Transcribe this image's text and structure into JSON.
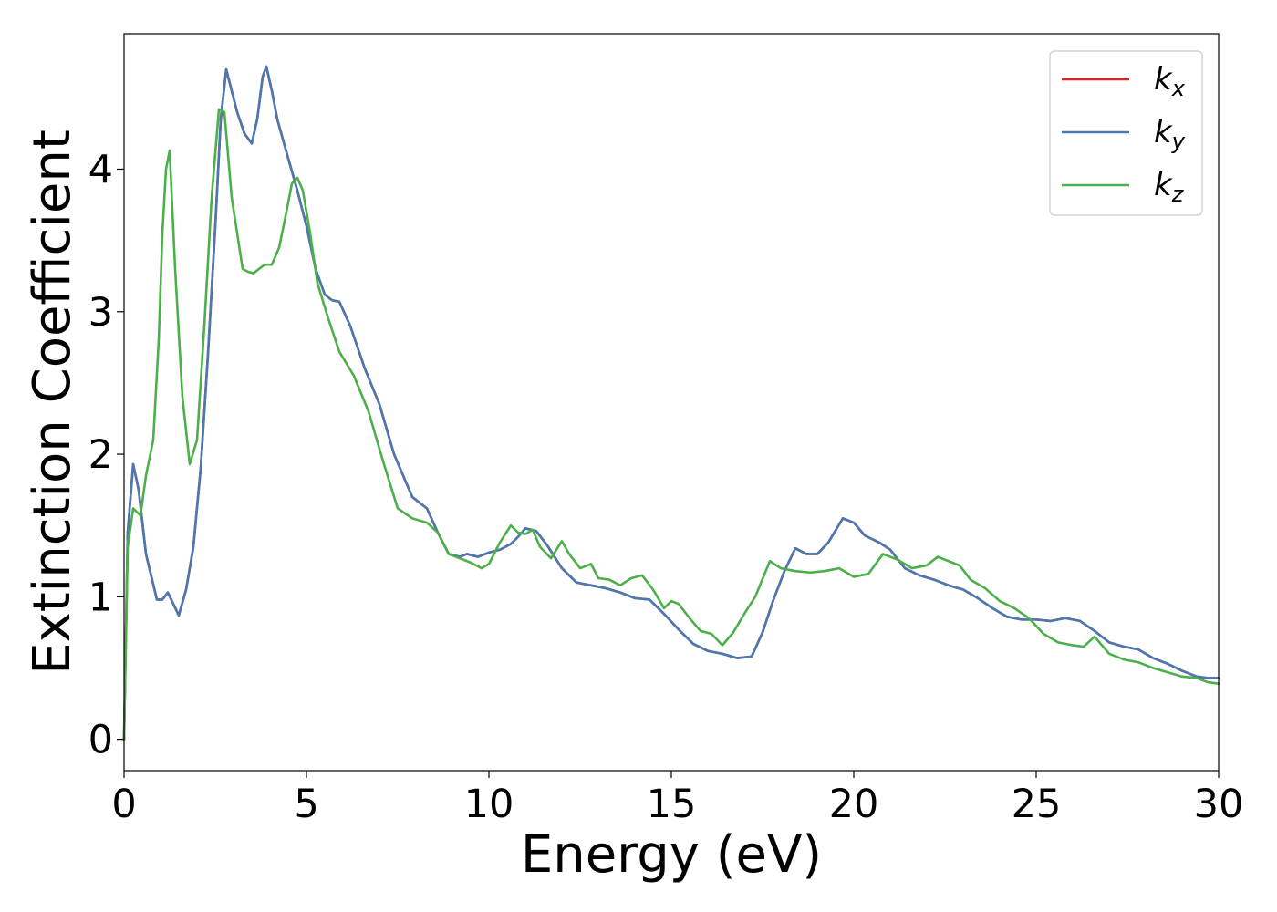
{
  "chart_data": {
    "type": "line",
    "title": "",
    "xlabel": "Energy (eV)",
    "ylabel": "Extinction Coefficient",
    "xlim": [
      0,
      30
    ],
    "ylim": [
      -0.22,
      4.95
    ],
    "xticks": [
      0,
      5,
      10,
      15,
      20,
      25,
      30
    ],
    "yticks": [
      0,
      1,
      2,
      3,
      4
    ],
    "grid": false,
    "legend_position": "top-right",
    "series": [
      {
        "name": "k_x",
        "legend_main": "k",
        "legend_sub": "x",
        "color": "#d62728",
        "x": [
          0,
          0.1,
          0.25,
          0.4,
          0.6,
          0.9,
          1.05,
          1.2,
          1.35,
          1.5,
          1.7,
          1.9,
          2.1,
          2.3,
          2.5,
          2.65,
          2.8,
          2.95,
          3.1,
          3.3,
          3.5,
          3.65,
          3.8,
          3.9,
          4.05,
          4.2,
          4.45,
          4.75,
          5.0,
          5.25,
          5.5,
          5.7,
          5.9,
          6.2,
          6.6,
          7.0,
          7.4,
          7.9,
          8.3,
          8.6,
          8.9,
          9.2,
          9.4,
          9.7,
          10.0,
          10.3,
          10.6,
          10.8,
          11.0,
          11.3,
          11.6,
          12.0,
          12.4,
          12.8,
          13.2,
          13.6,
          14.0,
          14.4,
          14.8,
          15.2,
          15.6,
          16.0,
          16.4,
          16.8,
          17.2,
          17.5,
          17.8,
          18.1,
          18.4,
          18.7,
          19.0,
          19.3,
          19.7,
          20.0,
          20.3,
          20.7,
          21.0,
          21.4,
          21.8,
          22.2,
          22.6,
          23.0,
          23.4,
          23.8,
          24.2,
          24.6,
          25.0,
          25.4,
          25.8,
          26.2,
          26.6,
          27.0,
          27.4,
          27.8,
          28.2,
          28.6,
          29.0,
          29.4,
          29.7,
          30.0
        ],
        "values": [
          0.0,
          1.45,
          1.93,
          1.75,
          1.3,
          0.98,
          0.98,
          1.03,
          0.95,
          0.87,
          1.05,
          1.35,
          1.9,
          2.7,
          3.6,
          4.35,
          4.7,
          4.55,
          4.4,
          4.25,
          4.18,
          4.35,
          4.65,
          4.72,
          4.55,
          4.35,
          4.12,
          3.85,
          3.6,
          3.3,
          3.12,
          3.08,
          3.07,
          2.9,
          2.6,
          2.35,
          2.0,
          1.7,
          1.62,
          1.45,
          1.3,
          1.28,
          1.3,
          1.28,
          1.31,
          1.33,
          1.37,
          1.42,
          1.48,
          1.46,
          1.36,
          1.2,
          1.1,
          1.08,
          1.06,
          1.03,
          0.99,
          0.98,
          0.88,
          0.77,
          0.67,
          0.62,
          0.6,
          0.57,
          0.58,
          0.75,
          0.98,
          1.18,
          1.34,
          1.3,
          1.3,
          1.38,
          1.55,
          1.52,
          1.43,
          1.38,
          1.33,
          1.2,
          1.15,
          1.12,
          1.08,
          1.05,
          0.99,
          0.92,
          0.86,
          0.84,
          0.84,
          0.83,
          0.85,
          0.83,
          0.76,
          0.68,
          0.65,
          0.63,
          0.57,
          0.53,
          0.48,
          0.44,
          0.43,
          0.43
        ]
      },
      {
        "name": "k_y",
        "legend_main": "k",
        "legend_sub": "y",
        "color": "#4a78b0",
        "x": [
          0,
          0.1,
          0.25,
          0.4,
          0.6,
          0.9,
          1.05,
          1.2,
          1.35,
          1.5,
          1.7,
          1.9,
          2.1,
          2.3,
          2.5,
          2.65,
          2.8,
          2.95,
          3.1,
          3.3,
          3.5,
          3.65,
          3.8,
          3.9,
          4.05,
          4.2,
          4.45,
          4.75,
          5.0,
          5.25,
          5.5,
          5.7,
          5.9,
          6.2,
          6.6,
          7.0,
          7.4,
          7.9,
          8.3,
          8.6,
          8.9,
          9.2,
          9.4,
          9.7,
          10.0,
          10.3,
          10.6,
          10.8,
          11.0,
          11.3,
          11.6,
          12.0,
          12.4,
          12.8,
          13.2,
          13.6,
          14.0,
          14.4,
          14.8,
          15.2,
          15.6,
          16.0,
          16.4,
          16.8,
          17.2,
          17.5,
          17.8,
          18.1,
          18.4,
          18.7,
          19.0,
          19.3,
          19.7,
          20.0,
          20.3,
          20.7,
          21.0,
          21.4,
          21.8,
          22.2,
          22.6,
          23.0,
          23.4,
          23.8,
          24.2,
          24.6,
          25.0,
          25.4,
          25.8,
          26.2,
          26.6,
          27.0,
          27.4,
          27.8,
          28.2,
          28.6,
          29.0,
          29.4,
          29.7,
          30.0
        ],
        "values": [
          0.0,
          1.45,
          1.93,
          1.75,
          1.3,
          0.98,
          0.98,
          1.03,
          0.95,
          0.87,
          1.05,
          1.35,
          1.9,
          2.7,
          3.6,
          4.35,
          4.7,
          4.55,
          4.4,
          4.25,
          4.18,
          4.35,
          4.65,
          4.72,
          4.55,
          4.35,
          4.12,
          3.85,
          3.6,
          3.3,
          3.12,
          3.08,
          3.07,
          2.9,
          2.6,
          2.35,
          2.0,
          1.7,
          1.62,
          1.45,
          1.3,
          1.28,
          1.3,
          1.28,
          1.31,
          1.33,
          1.37,
          1.42,
          1.48,
          1.46,
          1.36,
          1.2,
          1.1,
          1.08,
          1.06,
          1.03,
          0.99,
          0.98,
          0.88,
          0.77,
          0.67,
          0.62,
          0.6,
          0.57,
          0.58,
          0.75,
          0.98,
          1.18,
          1.34,
          1.3,
          1.3,
          1.38,
          1.55,
          1.52,
          1.43,
          1.38,
          1.33,
          1.2,
          1.15,
          1.12,
          1.08,
          1.05,
          0.99,
          0.92,
          0.86,
          0.84,
          0.84,
          0.83,
          0.85,
          0.83,
          0.76,
          0.68,
          0.65,
          0.63,
          0.57,
          0.53,
          0.48,
          0.44,
          0.43,
          0.43
        ]
      },
      {
        "name": "k_z",
        "legend_main": "k",
        "legend_sub": "z",
        "color": "#4daf4a",
        "x": [
          0,
          0.1,
          0.25,
          0.45,
          0.6,
          0.8,
          0.95,
          1.05,
          1.15,
          1.25,
          1.4,
          1.6,
          1.8,
          2.0,
          2.2,
          2.4,
          2.6,
          2.75,
          2.95,
          3.1,
          3.25,
          3.4,
          3.55,
          3.7,
          3.85,
          4.05,
          4.25,
          4.45,
          4.6,
          4.75,
          4.9,
          5.1,
          5.3,
          5.6,
          5.9,
          6.3,
          6.7,
          7.1,
          7.5,
          7.9,
          8.3,
          8.6,
          8.9,
          9.2,
          9.5,
          9.8,
          10.0,
          10.3,
          10.6,
          10.8,
          11.0,
          11.2,
          11.4,
          11.7,
          12.0,
          12.2,
          12.5,
          12.8,
          13.0,
          13.3,
          13.6,
          13.9,
          14.2,
          14.5,
          14.8,
          15.0,
          15.2,
          15.5,
          15.8,
          16.1,
          16.4,
          16.7,
          17.0,
          17.3,
          17.7,
          18.0,
          18.4,
          18.8,
          19.2,
          19.6,
          20.0,
          20.4,
          20.8,
          21.2,
          21.6,
          22.0,
          22.3,
          22.6,
          22.9,
          23.2,
          23.6,
          24.0,
          24.4,
          24.8,
          25.2,
          25.6,
          26.0,
          26.3,
          26.6,
          27.0,
          27.4,
          27.8,
          28.2,
          28.6,
          29.0,
          29.4,
          29.7,
          30.0
        ],
        "values": [
          0.0,
          1.35,
          1.62,
          1.57,
          1.85,
          2.1,
          2.8,
          3.55,
          4.0,
          4.13,
          3.3,
          2.4,
          1.93,
          2.1,
          2.9,
          3.8,
          4.42,
          4.4,
          3.8,
          3.55,
          3.3,
          3.28,
          3.27,
          3.3,
          3.33,
          3.33,
          3.45,
          3.7,
          3.9,
          3.94,
          3.85,
          3.55,
          3.2,
          2.95,
          2.72,
          2.55,
          2.3,
          1.95,
          1.62,
          1.55,
          1.52,
          1.45,
          1.3,
          1.27,
          1.24,
          1.2,
          1.23,
          1.38,
          1.5,
          1.45,
          1.44,
          1.47,
          1.35,
          1.27,
          1.39,
          1.3,
          1.2,
          1.23,
          1.13,
          1.12,
          1.08,
          1.13,
          1.15,
          1.05,
          0.92,
          0.97,
          0.95,
          0.85,
          0.76,
          0.74,
          0.66,
          0.75,
          0.88,
          1.0,
          1.25,
          1.2,
          1.18,
          1.17,
          1.18,
          1.2,
          1.14,
          1.16,
          1.3,
          1.26,
          1.2,
          1.22,
          1.28,
          1.25,
          1.22,
          1.12,
          1.06,
          0.97,
          0.92,
          0.85,
          0.74,
          0.68,
          0.66,
          0.65,
          0.72,
          0.6,
          0.56,
          0.54,
          0.5,
          0.47,
          0.44,
          0.43,
          0.4,
          0.39
        ]
      }
    ]
  }
}
